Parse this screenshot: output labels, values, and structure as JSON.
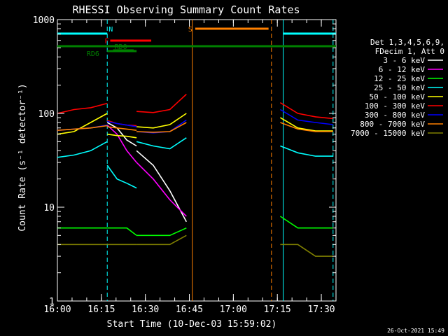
{
  "chart_data": {
    "type": "line",
    "title": "RHESSI Observing Summary Count Rates",
    "xlabel": "Start Time (10-Dec-03 15:59:02)",
    "ylabel": "Count Rate (s⁻¹ detector⁻¹)",
    "ylog": true,
    "ylim": [
      1,
      1000
    ],
    "xlim": [
      "16:00",
      "17:35"
    ],
    "xticks": [
      "16:00",
      "16:15",
      "16:30",
      "16:45",
      "17:00",
      "17:15",
      "17:30"
    ],
    "yticks": [
      "1",
      "10",
      "100",
      "1000"
    ],
    "legend_placement": "right",
    "legend_header": [
      "Det 1,3,4,5,6,9,",
      "FDecim 1, Att 0"
    ],
    "footer_date": "26-Oct-2021 15:49",
    "flags": [
      {
        "label": "N",
        "color": "#00ffff",
        "intervals": [
          [
            "16:00",
            "16:17"
          ],
          [
            "17:17",
            "17:35"
          ]
        ]
      },
      {
        "label": "F",
        "color": "#ff0000",
        "intervals": [
          [
            "16:18",
            "16:32"
          ]
        ]
      },
      {
        "label": "S",
        "color": "#ff8000",
        "intervals": [
          [
            "16:47",
            "17:12"
          ]
        ]
      },
      {
        "label": "RD0",
        "color": "#008000",
        "intervals": [
          [
            "16:19",
            "16:26"
          ]
        ]
      },
      {
        "label": "RD6",
        "color": "#008000",
        "intervals": [
          [
            "16:00",
            "17:35"
          ],
          [
            "16:17",
            "16:27"
          ]
        ]
      }
    ],
    "event_lines": [
      {
        "time": "16:17",
        "color": "#00ffff",
        "style": "dashed"
      },
      {
        "time": "16:46",
        "color": "#ff8000",
        "style": "solid"
      },
      {
        "time": "17:13",
        "color": "#ff8000",
        "style": "dashed"
      },
      {
        "time": "17:17",
        "color": "#00ffff",
        "style": "solid"
      },
      {
        "time": "17:34",
        "color": "#00ffff",
        "style": "dashed"
      }
    ],
    "segments": [
      [
        "16:00",
        "16:17"
      ],
      [
        "16:17",
        "16:27"
      ],
      [
        "16:27",
        "16:44"
      ],
      [
        "17:16",
        "17:34"
      ]
    ],
    "series": [
      {
        "name": "3 - 6 keV",
        "color": "#ffffff",
        "values": [
          [
            null,
            null,
            null,
            null
          ],
          [
            80,
            70,
            52,
            45
          ],
          [
            40,
            28,
            15,
            7
          ],
          [
            null,
            null,
            null,
            null
          ]
        ]
      },
      {
        "name": "6 - 12 keV",
        "color": "#ff00ff",
        "values": [
          [
            null,
            null,
            null,
            null
          ],
          [
            75,
            60,
            40,
            30
          ],
          [
            30,
            20,
            12,
            8
          ],
          [
            null,
            null,
            null,
            null
          ]
        ]
      },
      {
        "name": "12 - 25 keV",
        "color": "#00ff00",
        "values": [
          [
            6,
            6,
            6,
            6
          ],
          [
            6,
            6,
            6,
            5
          ],
          [
            5,
            5,
            5,
            6
          ],
          [
            8,
            6,
            6,
            6
          ]
        ]
      },
      {
        "name": "25 - 50 keV",
        "color": "#00ffff",
        "values": [
          [
            34,
            36,
            40,
            50
          ],
          [
            28,
            20,
            18,
            16
          ],
          [
            50,
            45,
            42,
            55
          ],
          [
            45,
            38,
            35,
            35
          ]
        ]
      },
      {
        "name": "50 - 100 keV",
        "color": "#ffff00",
        "values": [
          [
            60,
            64,
            80,
            100
          ],
          [
            60,
            58,
            57,
            55
          ],
          [
            72,
            70,
            76,
            100
          ],
          [
            90,
            70,
            65,
            65
          ]
        ]
      },
      {
        "name": "100 - 300 keV",
        "color": "#ff0000",
        "values": [
          [
            100,
            110,
            115,
            128
          ],
          [
            84,
            78,
            75,
            74
          ],
          [
            105,
            102,
            110,
            160
          ],
          [
            130,
            100,
            92,
            88
          ]
        ]
      },
      {
        "name": "300 - 800 keV",
        "color": "#0000ff",
        "values": [
          [
            66,
            68,
            70,
            75
          ],
          [
            82,
            78,
            75,
            72
          ],
          [
            64,
            62,
            64,
            85
          ],
          [
            110,
            85,
            80,
            76
          ]
        ]
      },
      {
        "name": "800 - 7000 keV",
        "color": "#ff8000",
        "values": [
          [
            66,
            68,
            70,
            74
          ],
          [
            72,
            70,
            68,
            66
          ],
          [
            64,
            63,
            64,
            80
          ],
          [
            80,
            68,
            64,
            64
          ]
        ]
      },
      {
        "name": "7000 - 15000 keV",
        "color": "#808000",
        "values": [
          [
            4,
            4,
            4,
            4
          ],
          [
            4,
            4,
            4,
            4
          ],
          [
            4,
            4,
            4,
            5
          ],
          [
            4,
            4,
            3,
            3
          ]
        ]
      }
    ]
  }
}
